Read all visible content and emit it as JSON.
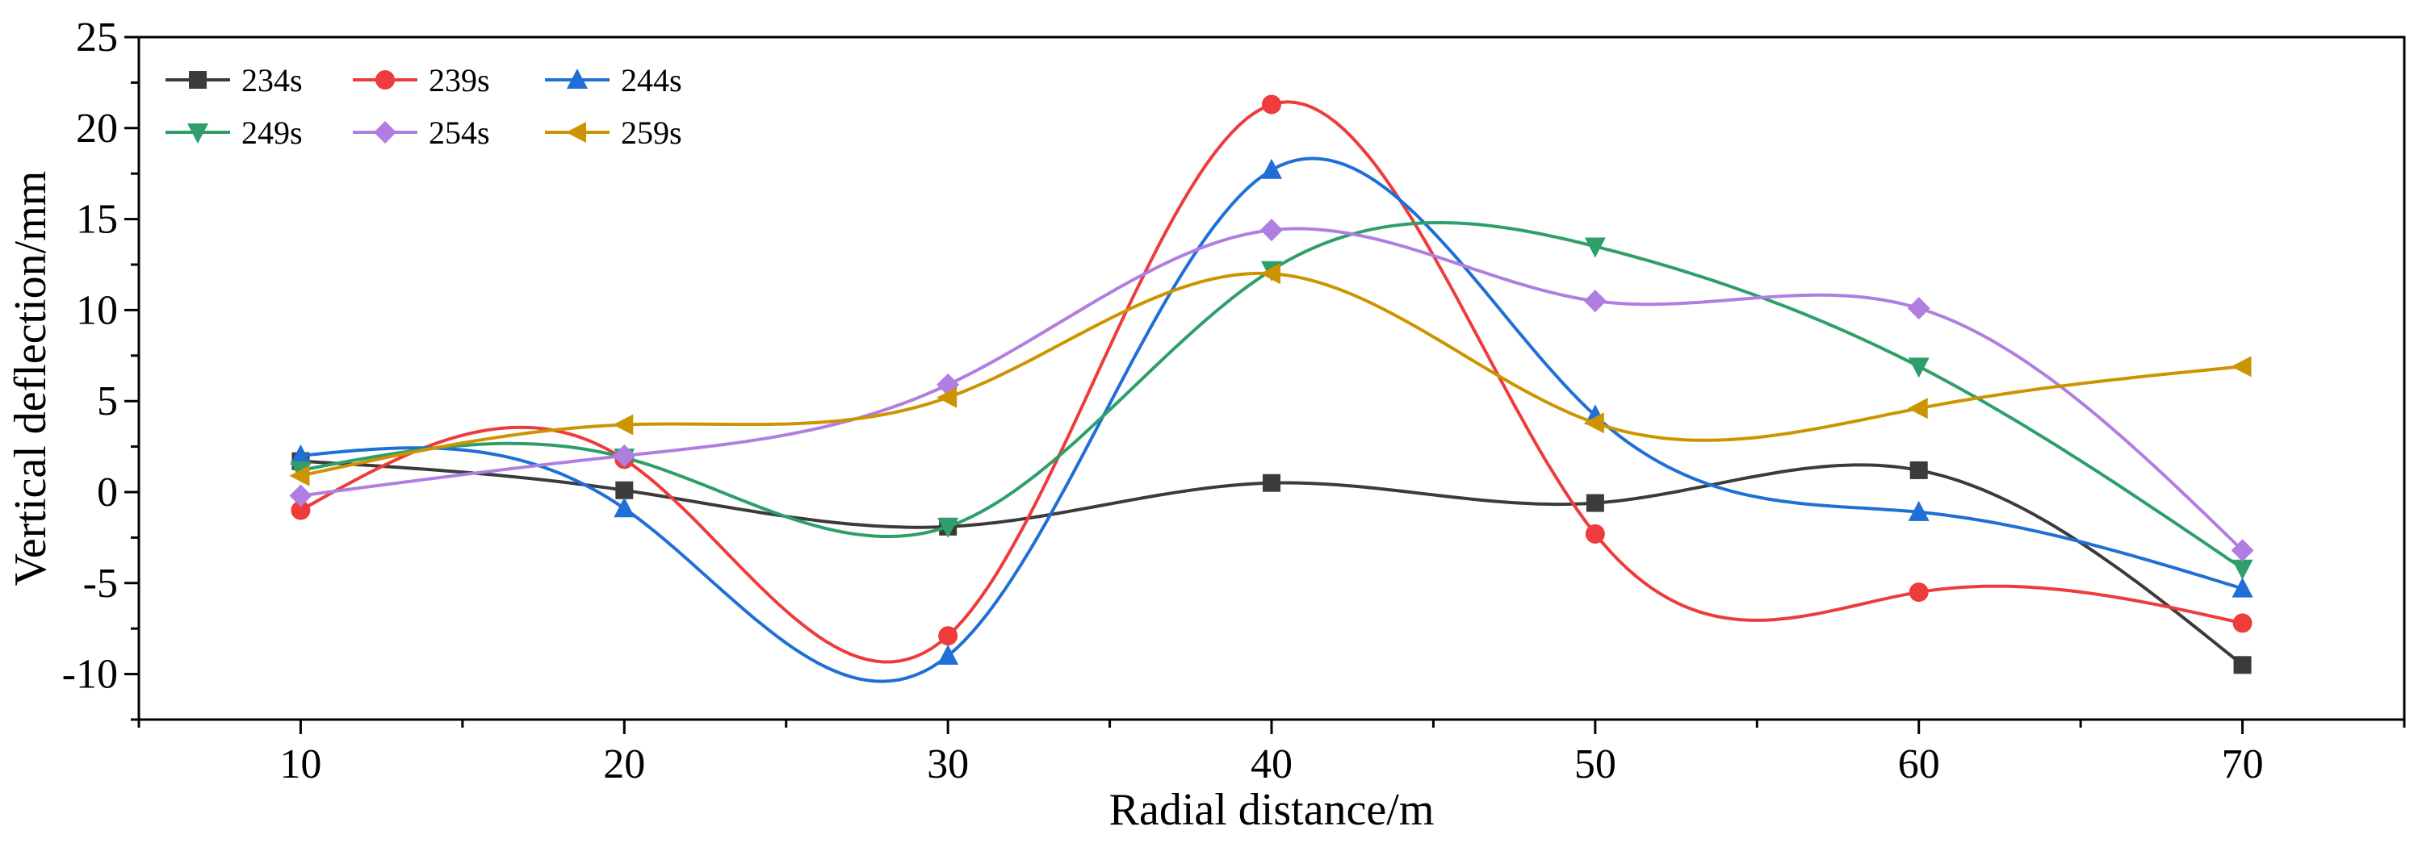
{
  "chart_data": {
    "type": "line",
    "title": "",
    "xlabel": "Radial distance/m",
    "ylabel": "Vertical deflection/mm",
    "x": [
      10,
      20,
      30,
      40,
      50,
      60,
      70
    ],
    "xlim": [
      5,
      75
    ],
    "ylim": [
      -12.5,
      25
    ],
    "xticks": [
      10,
      20,
      30,
      40,
      50,
      60,
      70
    ],
    "yticks": [
      -10,
      -5,
      0,
      5,
      10,
      15,
      20,
      25
    ],
    "legend_position": "top-left",
    "series": [
      {
        "name": "234s",
        "marker": "square",
        "color": "#3b3b3b",
        "values": [
          1.7,
          0.1,
          -1.9,
          0.5,
          -0.6,
          1.2,
          -9.5
        ]
      },
      {
        "name": "239s",
        "marker": "circle",
        "color": "#ee3b3b",
        "values": [
          -1.0,
          1.8,
          -7.9,
          21.3,
          -2.3,
          -5.5,
          -7.2
        ]
      },
      {
        "name": "244s",
        "marker": "triangle-up",
        "color": "#1f6fd6",
        "values": [
          2.0,
          -0.9,
          -9.0,
          17.7,
          4.2,
          -1.1,
          -5.3
        ]
      },
      {
        "name": "249s",
        "marker": "triangle-down",
        "color": "#2e9e6a",
        "values": [
          1.2,
          1.9,
          -1.9,
          12.2,
          13.5,
          6.9,
          -4.2
        ]
      },
      {
        "name": "254s",
        "marker": "diamond",
        "color": "#b07ee0",
        "values": [
          -0.2,
          2.0,
          5.9,
          14.4,
          10.5,
          10.1,
          -3.2
        ]
      },
      {
        "name": "259s",
        "marker": "triangle-left",
        "color": "#cc9400",
        "values": [
          0.9,
          3.7,
          5.2,
          12.0,
          3.8,
          4.6,
          6.9
        ]
      }
    ]
  }
}
